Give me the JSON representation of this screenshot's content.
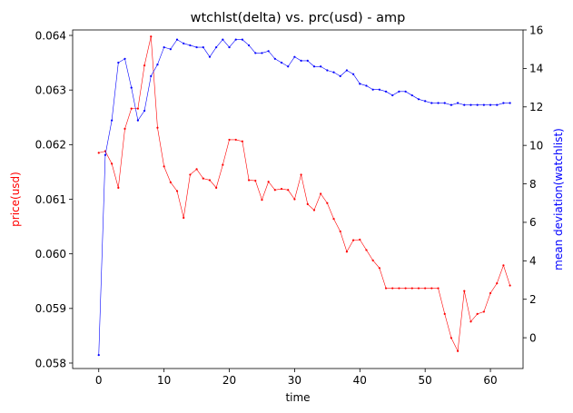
{
  "chart_data": {
    "type": "line",
    "title": "wtchlst(delta) vs. prc(usd) - amp",
    "xlabel": "time",
    "ylabel_left": "price(usd)",
    "ylabel_right": "mean deviation(watchlist)",
    "xlim": [
      -4,
      65
    ],
    "ylim_left": [
      0.0579,
      0.0641
    ],
    "ylim_right": [
      -1.6,
      16.0
    ],
    "x_ticks": [
      0,
      10,
      20,
      30,
      40,
      50,
      60
    ],
    "y_ticks_left": [
      0.058,
      0.059,
      0.06,
      0.061,
      0.062,
      0.063,
      0.064
    ],
    "y_ticks_right": [
      0,
      2,
      4,
      6,
      8,
      10,
      12,
      14,
      16
    ],
    "grid": false,
    "legend": "none",
    "colors": {
      "left_axis_label": "#ff0000",
      "right_axis_label": "#0000ff"
    },
    "series": [
      {
        "axis": "left",
        "color": "#ff0000",
        "values": [
          0.06185,
          0.06188,
          0.06165,
          0.06121,
          0.06229,
          0.06266,
          0.06266,
          0.06345,
          0.06398,
          0.06231,
          0.0616,
          0.06131,
          0.06115,
          0.06066,
          0.06145,
          0.06155,
          0.06138,
          0.06135,
          0.06121,
          0.06163,
          0.06209,
          0.06209,
          0.06206,
          0.06135,
          0.06134,
          0.06099,
          0.06132,
          0.06117,
          0.06119,
          0.06117,
          0.061,
          0.06145,
          0.06091,
          0.0608,
          0.0611,
          0.06093,
          0.06064,
          0.06041,
          0.06004,
          0.06025,
          0.06026,
          0.06007,
          0.05988,
          0.05974,
          0.05937,
          0.05937,
          0.05937,
          0.05937,
          0.05937,
          0.05937,
          0.05937,
          0.05937,
          0.05937,
          0.0589,
          0.05846,
          0.05822,
          0.05932,
          0.05876,
          0.0589,
          0.05894,
          0.05928,
          0.05946,
          0.05979,
          0.05942
        ]
      },
      {
        "axis": "right",
        "color": "#0000ff",
        "values": [
          -0.9,
          9.5,
          11.3,
          14.3,
          14.5,
          13.0,
          11.3,
          11.8,
          13.6,
          14.2,
          15.1,
          15.0,
          15.5,
          15.3,
          15.2,
          15.1,
          15.1,
          14.6,
          15.1,
          15.5,
          15.1,
          15.5,
          15.5,
          15.2,
          14.8,
          14.8,
          14.9,
          14.5,
          14.3,
          14.1,
          14.6,
          14.4,
          14.4,
          14.1,
          14.1,
          13.9,
          13.8,
          13.6,
          13.9,
          13.7,
          13.2,
          13.1,
          12.9,
          12.9,
          12.8,
          12.6,
          12.8,
          12.8,
          12.6,
          12.4,
          12.3,
          12.2,
          12.2,
          12.2,
          12.1,
          12.2,
          12.1,
          12.1,
          12.1,
          12.1,
          12.1,
          12.1,
          12.2,
          12.2
        ]
      }
    ]
  }
}
